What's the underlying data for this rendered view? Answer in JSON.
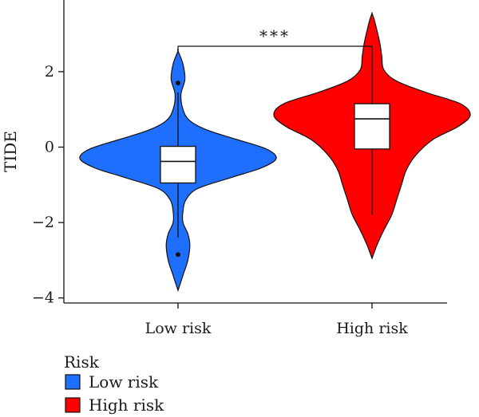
{
  "chart_data": {
    "type": "violin",
    "ylabel": "TIDE",
    "xlabel": "",
    "ylim": [
      -4.2,
      3.7
    ],
    "yticks": [
      -4,
      -2,
      0,
      2
    ],
    "categories": [
      "Low risk",
      "High risk"
    ],
    "significance": "***",
    "legend": {
      "title": "Risk",
      "position": "bottom-left",
      "entries": [
        {
          "label": "Low risk",
          "color": "#1f6fff"
        },
        {
          "label": "High risk",
          "color": "#ff0000"
        }
      ]
    },
    "groups": [
      {
        "name": "Low risk",
        "color": "#1f6fff",
        "violin_range": [
          -3.8,
          2.55
        ],
        "box": {
          "q1": -0.95,
          "median": -0.38,
          "q3": 0.02,
          "whisker_low": -2.4,
          "whisker_high": 1.45
        },
        "outliers": [
          1.7,
          -2.85
        ],
        "density": [
          [
            -3.8,
            0.0
          ],
          [
            -3.4,
            0.05
          ],
          [
            -3.0,
            0.1
          ],
          [
            -2.6,
            0.12
          ],
          [
            -2.3,
            0.1
          ],
          [
            -2.0,
            0.05
          ],
          [
            -1.7,
            0.05
          ],
          [
            -1.4,
            0.08
          ],
          [
            -1.1,
            0.2
          ],
          [
            -0.8,
            0.55
          ],
          [
            -0.55,
            0.85
          ],
          [
            -0.3,
            1.0
          ],
          [
            -0.05,
            0.9
          ],
          [
            0.2,
            0.6
          ],
          [
            0.45,
            0.3
          ],
          [
            0.7,
            0.12
          ],
          [
            1.0,
            0.05
          ],
          [
            1.4,
            0.03
          ],
          [
            1.8,
            0.07
          ],
          [
            2.2,
            0.05
          ],
          [
            2.55,
            0.0
          ]
        ]
      },
      {
        "name": "High risk",
        "color": "#ff0000",
        "violin_range": [
          -2.95,
          3.55
        ],
        "box": {
          "q1": -0.05,
          "median": 0.75,
          "q3": 1.15,
          "whisker_low": -1.8,
          "whisker_high": 2.4
        },
        "outliers": [],
        "density": [
          [
            -2.95,
            0.0
          ],
          [
            -2.6,
            0.05
          ],
          [
            -2.2,
            0.12
          ],
          [
            -1.8,
            0.2
          ],
          [
            -1.4,
            0.25
          ],
          [
            -1.0,
            0.3
          ],
          [
            -0.6,
            0.35
          ],
          [
            -0.2,
            0.45
          ],
          [
            0.2,
            0.62
          ],
          [
            0.55,
            0.88
          ],
          [
            0.85,
            1.0
          ],
          [
            1.15,
            0.9
          ],
          [
            1.45,
            0.55
          ],
          [
            1.75,
            0.25
          ],
          [
            2.05,
            0.12
          ],
          [
            2.4,
            0.1
          ],
          [
            2.75,
            0.08
          ],
          [
            3.1,
            0.05
          ],
          [
            3.4,
            0.02
          ],
          [
            3.55,
            0.0
          ]
        ]
      }
    ]
  }
}
